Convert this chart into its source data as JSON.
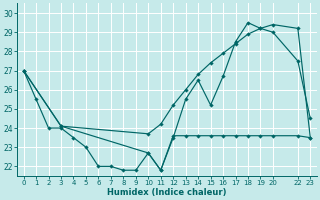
{
  "xlabel": "Humidex (Indice chaleur)",
  "xlim": [
    -0.5,
    23.5
  ],
  "ylim": [
    21.5,
    30.5
  ],
  "yticks": [
    22,
    23,
    24,
    25,
    26,
    27,
    28,
    29,
    30
  ],
  "xticks": [
    0,
    1,
    2,
    3,
    4,
    5,
    6,
    7,
    8,
    9,
    10,
    11,
    12,
    13,
    14,
    15,
    16,
    17,
    18,
    19,
    20,
    22,
    23
  ],
  "xtick_labels": [
    "0",
    "1",
    "2",
    "3",
    "4",
    "5",
    "6",
    "7",
    "8",
    "9",
    "10",
    "11",
    "12",
    "13",
    "14",
    "15",
    "16",
    "17",
    "18",
    "19",
    "20",
    "22",
    "23"
  ],
  "bg_color": "#c6eaea",
  "grid_color": "#ffffff",
  "line_color": "#006666",
  "series": [
    {
      "x": [
        0,
        1,
        2,
        3,
        4,
        5,
        6,
        7,
        8,
        9,
        10,
        11,
        12,
        13,
        14,
        15,
        16,
        17,
        18,
        19,
        20,
        22,
        23
      ],
      "y": [
        27,
        25.5,
        24,
        24,
        23.5,
        23,
        22,
        22,
        21.8,
        21.8,
        22.7,
        21.8,
        23.6,
        23.6,
        23.6,
        23.6,
        23.6,
        23.6,
        23.6,
        23.6,
        23.6,
        23.6,
        23.5
      ]
    },
    {
      "x": [
        0,
        3,
        10,
        11,
        12,
        13,
        14,
        15,
        16,
        17,
        18,
        19,
        20,
        22,
        23
      ],
      "y": [
        27,
        24.1,
        23.7,
        24.2,
        25.2,
        26.0,
        26.8,
        27.4,
        27.9,
        28.4,
        28.9,
        29.2,
        29.4,
        29.2,
        23.5
      ]
    },
    {
      "x": [
        0,
        3,
        10,
        11,
        12,
        13,
        14,
        15,
        16,
        17,
        18,
        19,
        20,
        22,
        23
      ],
      "y": [
        27,
        24.1,
        22.7,
        21.8,
        23.5,
        25.5,
        26.5,
        25.2,
        26.7,
        28.5,
        29.5,
        29.2,
        29.0,
        27.5,
        24.5
      ]
    }
  ]
}
